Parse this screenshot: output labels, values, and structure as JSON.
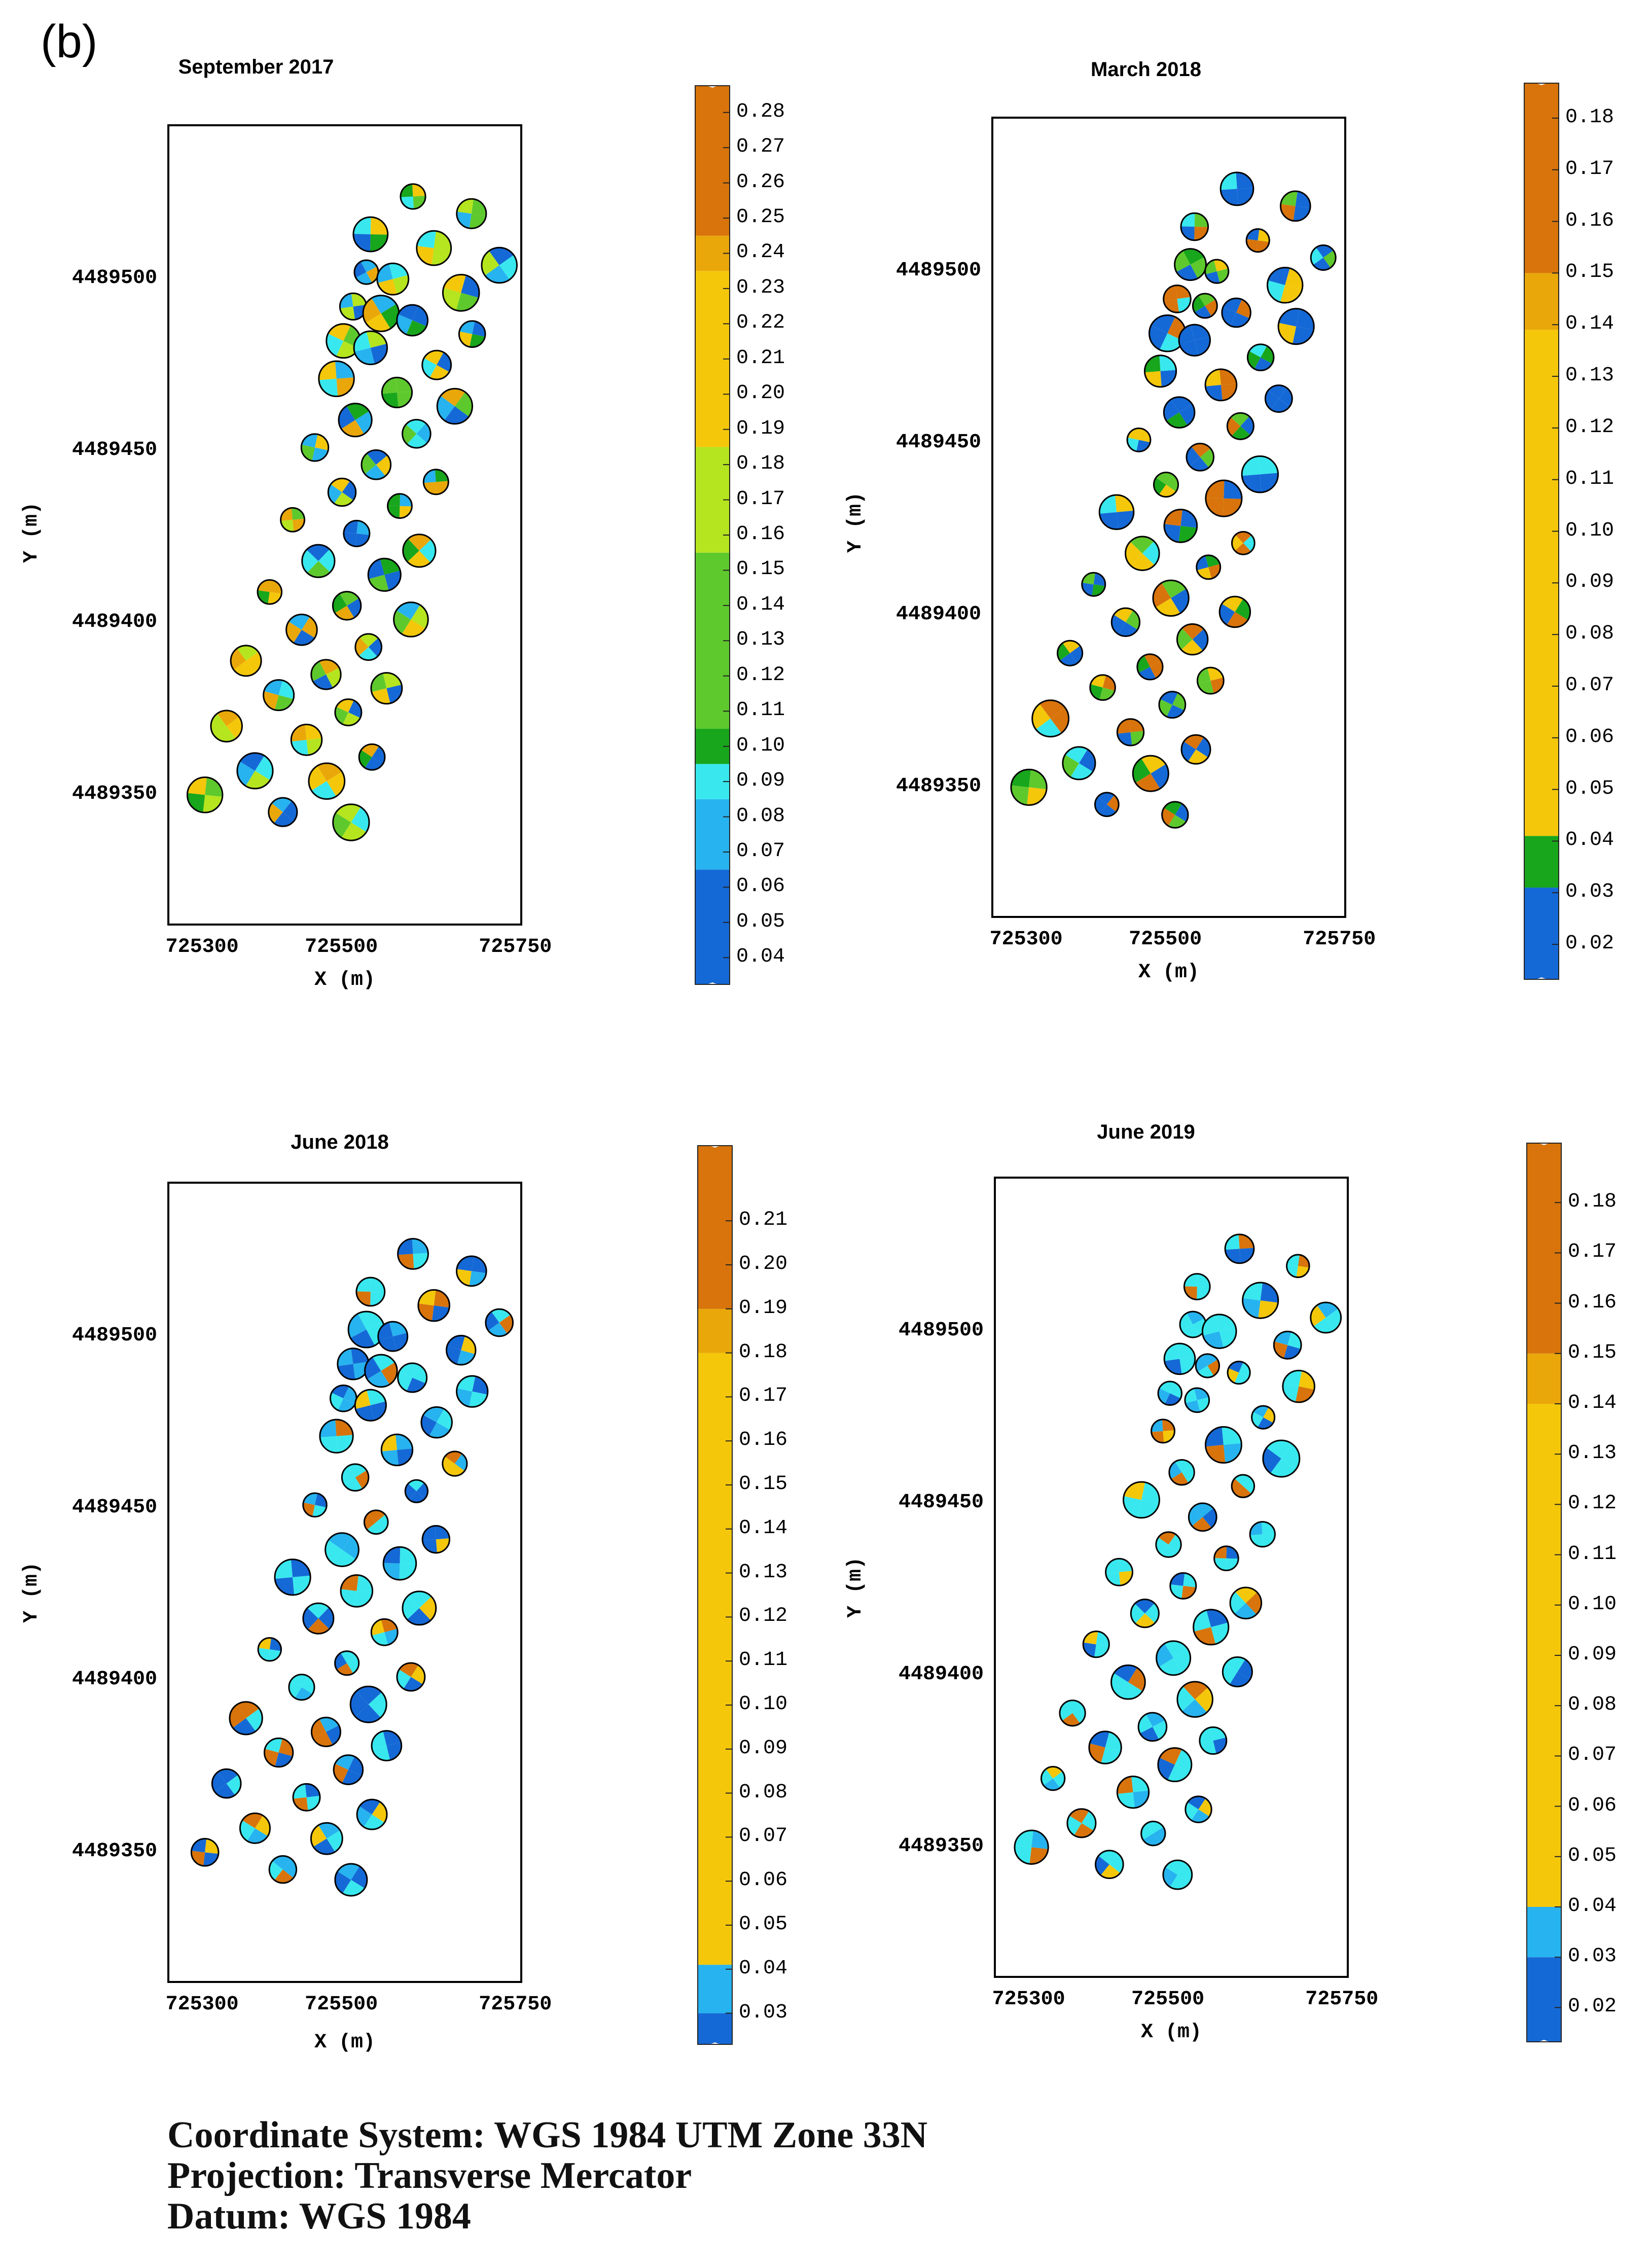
{
  "figure_label": "(b)",
  "footer": {
    "coordinate_system": "Coordinate System: WGS 1984 UTM Zone 33N",
    "projection": "Projection: Transverse Mercator",
    "datum": "Datum: WGS 1984"
  },
  "colors": {
    "dark_blue": "#1569d6",
    "light_blue": "#27b3ef",
    "cyan": "#38e8ee",
    "dark_green": "#18a61c",
    "green": "#5ec92d",
    "light_green": "#b5e51e",
    "yellow": "#f4c70a",
    "gold": "#e9a70a",
    "orange": "#d8740b",
    "outline": "#000000"
  },
  "chart_data": [
    {
      "type": "map",
      "title": "September 2017",
      "xlabel": "X (m)",
      "ylabel": "Y (m)",
      "xlim": [
        725250,
        725760
      ],
      "ylim": [
        4489312,
        4489545
      ],
      "x_ticks": [
        "725300",
        "725500",
        "725750"
      ],
      "x_tick_values": [
        725300,
        725500,
        725750
      ],
      "y_ticks": [
        "4489500",
        "4489450",
        "4489400",
        "4489350"
      ],
      "y_tick_values": [
        4489500,
        4489450,
        4489400,
        4489350
      ],
      "colorbar": {
        "labels": [
          "0.28",
          "0.27",
          "0.26",
          "0.25",
          "0.24",
          "0.23",
          "0.22",
          "0.21",
          "0.20",
          "0.19",
          "0.18",
          "0.17",
          "0.16",
          "0.15",
          "0.14",
          "0.13",
          "0.12",
          "0.11",
          "0.10",
          "0.09",
          "0.08",
          "0.07",
          "0.06",
          "0.05",
          "0.04"
        ],
        "range": [
          0.035,
          0.285
        ],
        "bands": [
          {
            "from": 0.035,
            "to": 0.065,
            "color": "#1569d6"
          },
          {
            "from": 0.065,
            "to": 0.085,
            "color": "#27b3ef"
          },
          {
            "from": 0.085,
            "to": 0.095,
            "color": "#38e8ee"
          },
          {
            "from": 0.095,
            "to": 0.105,
            "color": "#18a61c"
          },
          {
            "from": 0.105,
            "to": 0.155,
            "color": "#5ec92d"
          },
          {
            "from": 0.155,
            "to": 0.185,
            "color": "#b5e51e"
          },
          {
            "from": 0.185,
            "to": 0.235,
            "color": "#f4c70a"
          },
          {
            "from": 0.235,
            "to": 0.245,
            "color": "#e9a70a"
          },
          {
            "from": 0.245,
            "to": 0.285,
            "color": "#d8740b"
          }
        ]
      },
      "palette": [
        "#38e8ee",
        "#f4c70a",
        "#18a61c",
        "#b5e51e",
        "#27b3ef",
        "#e9a70a",
        "#5ec92d",
        "#1569d6"
      ]
    },
    {
      "type": "map",
      "title": "March 2018",
      "xlabel": "X (m)",
      "ylabel": "Y (m)",
      "xlim": [
        725250,
        725760
      ],
      "ylim": [
        4489312,
        4489545
      ],
      "x_ticks": [
        "725300",
        "725500",
        "725750"
      ],
      "x_tick_values": [
        725300,
        725500,
        725750
      ],
      "y_ticks": [
        "4489500",
        "4489450",
        "4489400",
        "4489350"
      ],
      "y_tick_values": [
        4489500,
        4489450,
        4489400,
        4489350
      ],
      "colorbar": {
        "labels": [
          "0.18",
          "0.17",
          "0.16",
          "0.15",
          "0.14",
          "0.13",
          "0.12",
          "0.11",
          "0.10",
          "0.09",
          "0.08",
          "0.07",
          "0.06",
          "0.05",
          "0.04",
          "0.03",
          "0.02"
        ],
        "range": [
          0.015,
          0.185
        ],
        "bands": [
          {
            "from": 0.015,
            "to": 0.031,
            "color": "#1569d6"
          },
          {
            "from": 0.031,
            "to": 0.041,
            "color": "#18a61c"
          },
          {
            "from": 0.041,
            "to": 0.139,
            "color": "#f4c70a"
          },
          {
            "from": 0.139,
            "to": 0.15,
            "color": "#e9a70a"
          },
          {
            "from": 0.15,
            "to": 0.185,
            "color": "#d8740b"
          }
        ]
      },
      "palette": [
        "#1569d6",
        "#1569d6",
        "#38e8ee",
        "#5ec92d",
        "#1569d6",
        "#f4c70a",
        "#18a61c",
        "#d8740b"
      ]
    },
    {
      "type": "map",
      "title": "June 2018",
      "xlabel": "X (m)",
      "ylabel": "Y (m)",
      "xlim": [
        725250,
        725760
      ],
      "ylim": [
        4489312,
        4489545
      ],
      "x_ticks": [
        "725300",
        "725500",
        "725750"
      ],
      "x_tick_values": [
        725300,
        725500,
        725750
      ],
      "y_ticks": [
        "4489500",
        "4489450",
        "4489400",
        "4489350"
      ],
      "y_tick_values": [
        4489500,
        4489450,
        4489400,
        4489350
      ],
      "colorbar": {
        "labels": [
          "0.21",
          "0.20",
          "0.19",
          "0.18",
          "0.17",
          "0.16",
          "0.15",
          "0.14",
          "0.13",
          "0.12",
          "0.11",
          "0.10",
          "0.09",
          "0.08",
          "0.07",
          "0.06",
          "0.05",
          "0.04",
          "0.03"
        ],
        "range": [
          0.025,
          0.225
        ],
        "bands": [
          {
            "from": 0.025,
            "to": 0.03,
            "color": "#1569d6"
          },
          {
            "from": 0.03,
            "to": 0.041,
            "color": "#27b3ef"
          },
          {
            "from": 0.041,
            "to": 0.18,
            "color": "#f4c70a"
          },
          {
            "from": 0.18,
            "to": 0.19,
            "color": "#e9a70a"
          },
          {
            "from": 0.19,
            "to": 0.225,
            "color": "#d8740b"
          }
        ]
      },
      "palette": [
        "#38e8ee",
        "#1569d6",
        "#38e8ee",
        "#d8740b",
        "#27b3ef",
        "#38e8ee",
        "#f4c70a",
        "#1569d6"
      ]
    },
    {
      "type": "map",
      "title": "June 2019",
      "xlabel": "X (m)",
      "ylabel": "Y (m)",
      "xlim": [
        725250,
        725760
      ],
      "ylim": [
        4489312,
        4489545
      ],
      "x_ticks": [
        "725300",
        "725500",
        "725750"
      ],
      "x_tick_values": [
        725300,
        725500,
        725750
      ],
      "y_ticks": [
        "4489500",
        "4489450",
        "4489400",
        "4489350"
      ],
      "y_tick_values": [
        4489500,
        4489450,
        4489400,
        4489350
      ],
      "colorbar": {
        "labels": [
          "0.18",
          "0.17",
          "0.16",
          "0.15",
          "0.14",
          "0.13",
          "0.12",
          "0.11",
          "0.10",
          "0.09",
          "0.08",
          "0.07",
          "0.06",
          "0.05",
          "0.04",
          "0.03",
          "0.02"
        ],
        "range": [
          0.015,
          0.19
        ],
        "bands": [
          {
            "from": 0.015,
            "to": 0.03,
            "color": "#1569d6"
          },
          {
            "from": 0.03,
            "to": 0.04,
            "color": "#27b3ef"
          },
          {
            "from": 0.04,
            "to": 0.14,
            "color": "#f4c70a"
          },
          {
            "from": 0.14,
            "to": 0.15,
            "color": "#e9a70a"
          },
          {
            "from": 0.15,
            "to": 0.19,
            "color": "#d8740b"
          }
        ]
      },
      "palette": [
        "#38e8ee",
        "#38e8ee",
        "#1569d6",
        "#d8740b",
        "#27b3ef",
        "#38e8ee",
        "#f4c70a",
        "#38e8ee"
      ]
    }
  ],
  "tree_locations": [
    [
      725603,
      4489524
    ],
    [
      725687,
      4489519
    ],
    [
      725542,
      4489513
    ],
    [
      725633,
      4489509
    ],
    [
      725727,
      4489504
    ],
    [
      725536,
      4489502
    ],
    [
      725574,
      4489500
    ],
    [
      725672,
      4489496
    ],
    [
      725517,
      4489492
    ],
    [
      725557,
      4489490
    ],
    [
      725602,
      4489488
    ],
    [
      725503,
      4489482
    ],
    [
      725542,
      4489480
    ],
    [
      725688,
      4489484
    ],
    [
      725637,
      4489475
    ],
    [
      725493,
      4489471
    ],
    [
      725580,
      4489467
    ],
    [
      725663,
      4489463
    ],
    [
      725520,
      4489459
    ],
    [
      725608,
      4489455
    ],
    [
      725462,
      4489451
    ],
    [
      725550,
      4489446
    ],
    [
      725636,
      4489441
    ],
    [
      725501,
      4489438
    ],
    [
      725584,
      4489434
    ],
    [
      725430,
      4489430
    ],
    [
      725522,
      4489426
    ],
    [
      725612,
      4489421
    ],
    [
      725467,
      4489418
    ],
    [
      725562,
      4489414
    ],
    [
      725397,
      4489409
    ],
    [
      725508,
      4489405
    ],
    [
      725600,
      4489401
    ],
    [
      725443,
      4489398
    ],
    [
      725539,
      4489393
    ],
    [
      725363,
      4489389
    ],
    [
      725478,
      4489385
    ],
    [
      725410,
      4489379
    ],
    [
      725565,
      4489381
    ],
    [
      725510,
      4489374
    ],
    [
      725335,
      4489370
    ],
    [
      725450,
      4489366
    ],
    [
      725544,
      4489361
    ],
    [
      725376,
      4489357
    ],
    [
      725479,
      4489354
    ],
    [
      725304,
      4489350
    ],
    [
      725416,
      4489345
    ],
    [
      725514,
      4489342
    ]
  ]
}
